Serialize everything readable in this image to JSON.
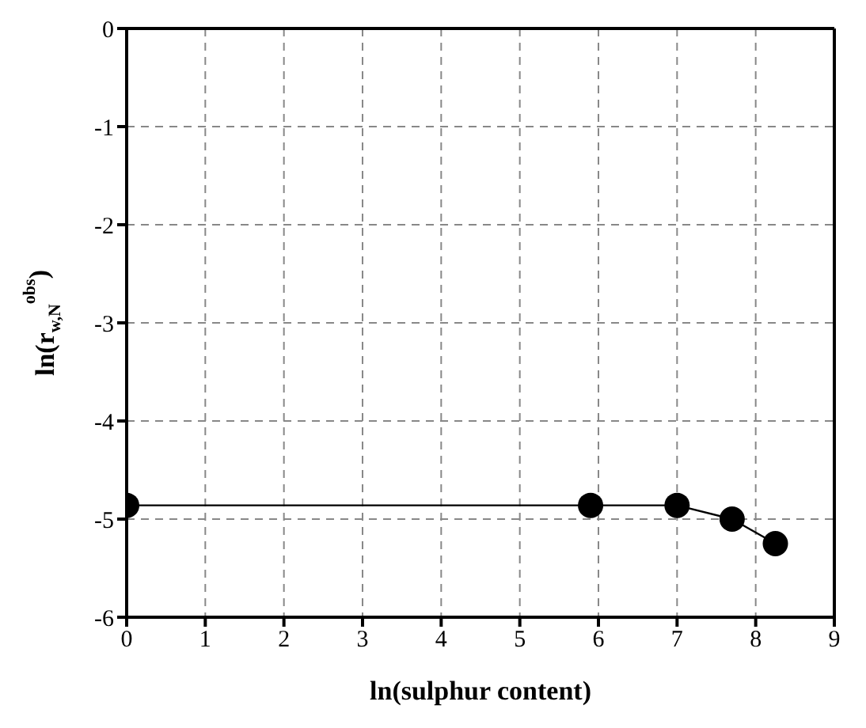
{
  "chart_data": {
    "type": "line",
    "xlabel": "ln(sulphur content)",
    "ylabel": "ln(r$_{w,N}$$^{obs}$)",
    "x": [
      0,
      5.9,
      7.0,
      7.7,
      8.25
    ],
    "series": [
      {
        "color": "#000000",
        "values": [
          -4.86,
          -4.86,
          -4.86,
          -5.0,
          -5.25
        ]
      }
    ],
    "xlim": [
      0,
      9
    ],
    "xticks": [
      0,
      1,
      2,
      3,
      4,
      5,
      6,
      7,
      8,
      9
    ],
    "ylim": [
      -6,
      0
    ],
    "yticks": [
      -6,
      -5,
      -4,
      -3,
      -2,
      -1,
      0
    ],
    "grid": true,
    "marker": "circle",
    "line_style": "solid"
  }
}
